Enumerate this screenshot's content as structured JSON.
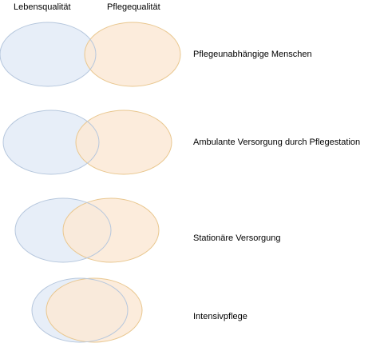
{
  "headers": {
    "left": "Lebensqualität",
    "right": "Pflegequalität"
  },
  "colors": {
    "left_fill": "#e7eef8",
    "left_stroke": "#b6c7dd",
    "right_fill": "#fbe9d6",
    "right_stroke": "#e9c78f"
  },
  "rows": [
    {
      "label": "Pflegeunabhängige Menschen"
    },
    {
      "label": "Ambulante Versorgung durch Pflegestation"
    },
    {
      "label": "Stationäre Versorgung"
    },
    {
      "label": "Intensivpflege"
    }
  ]
}
